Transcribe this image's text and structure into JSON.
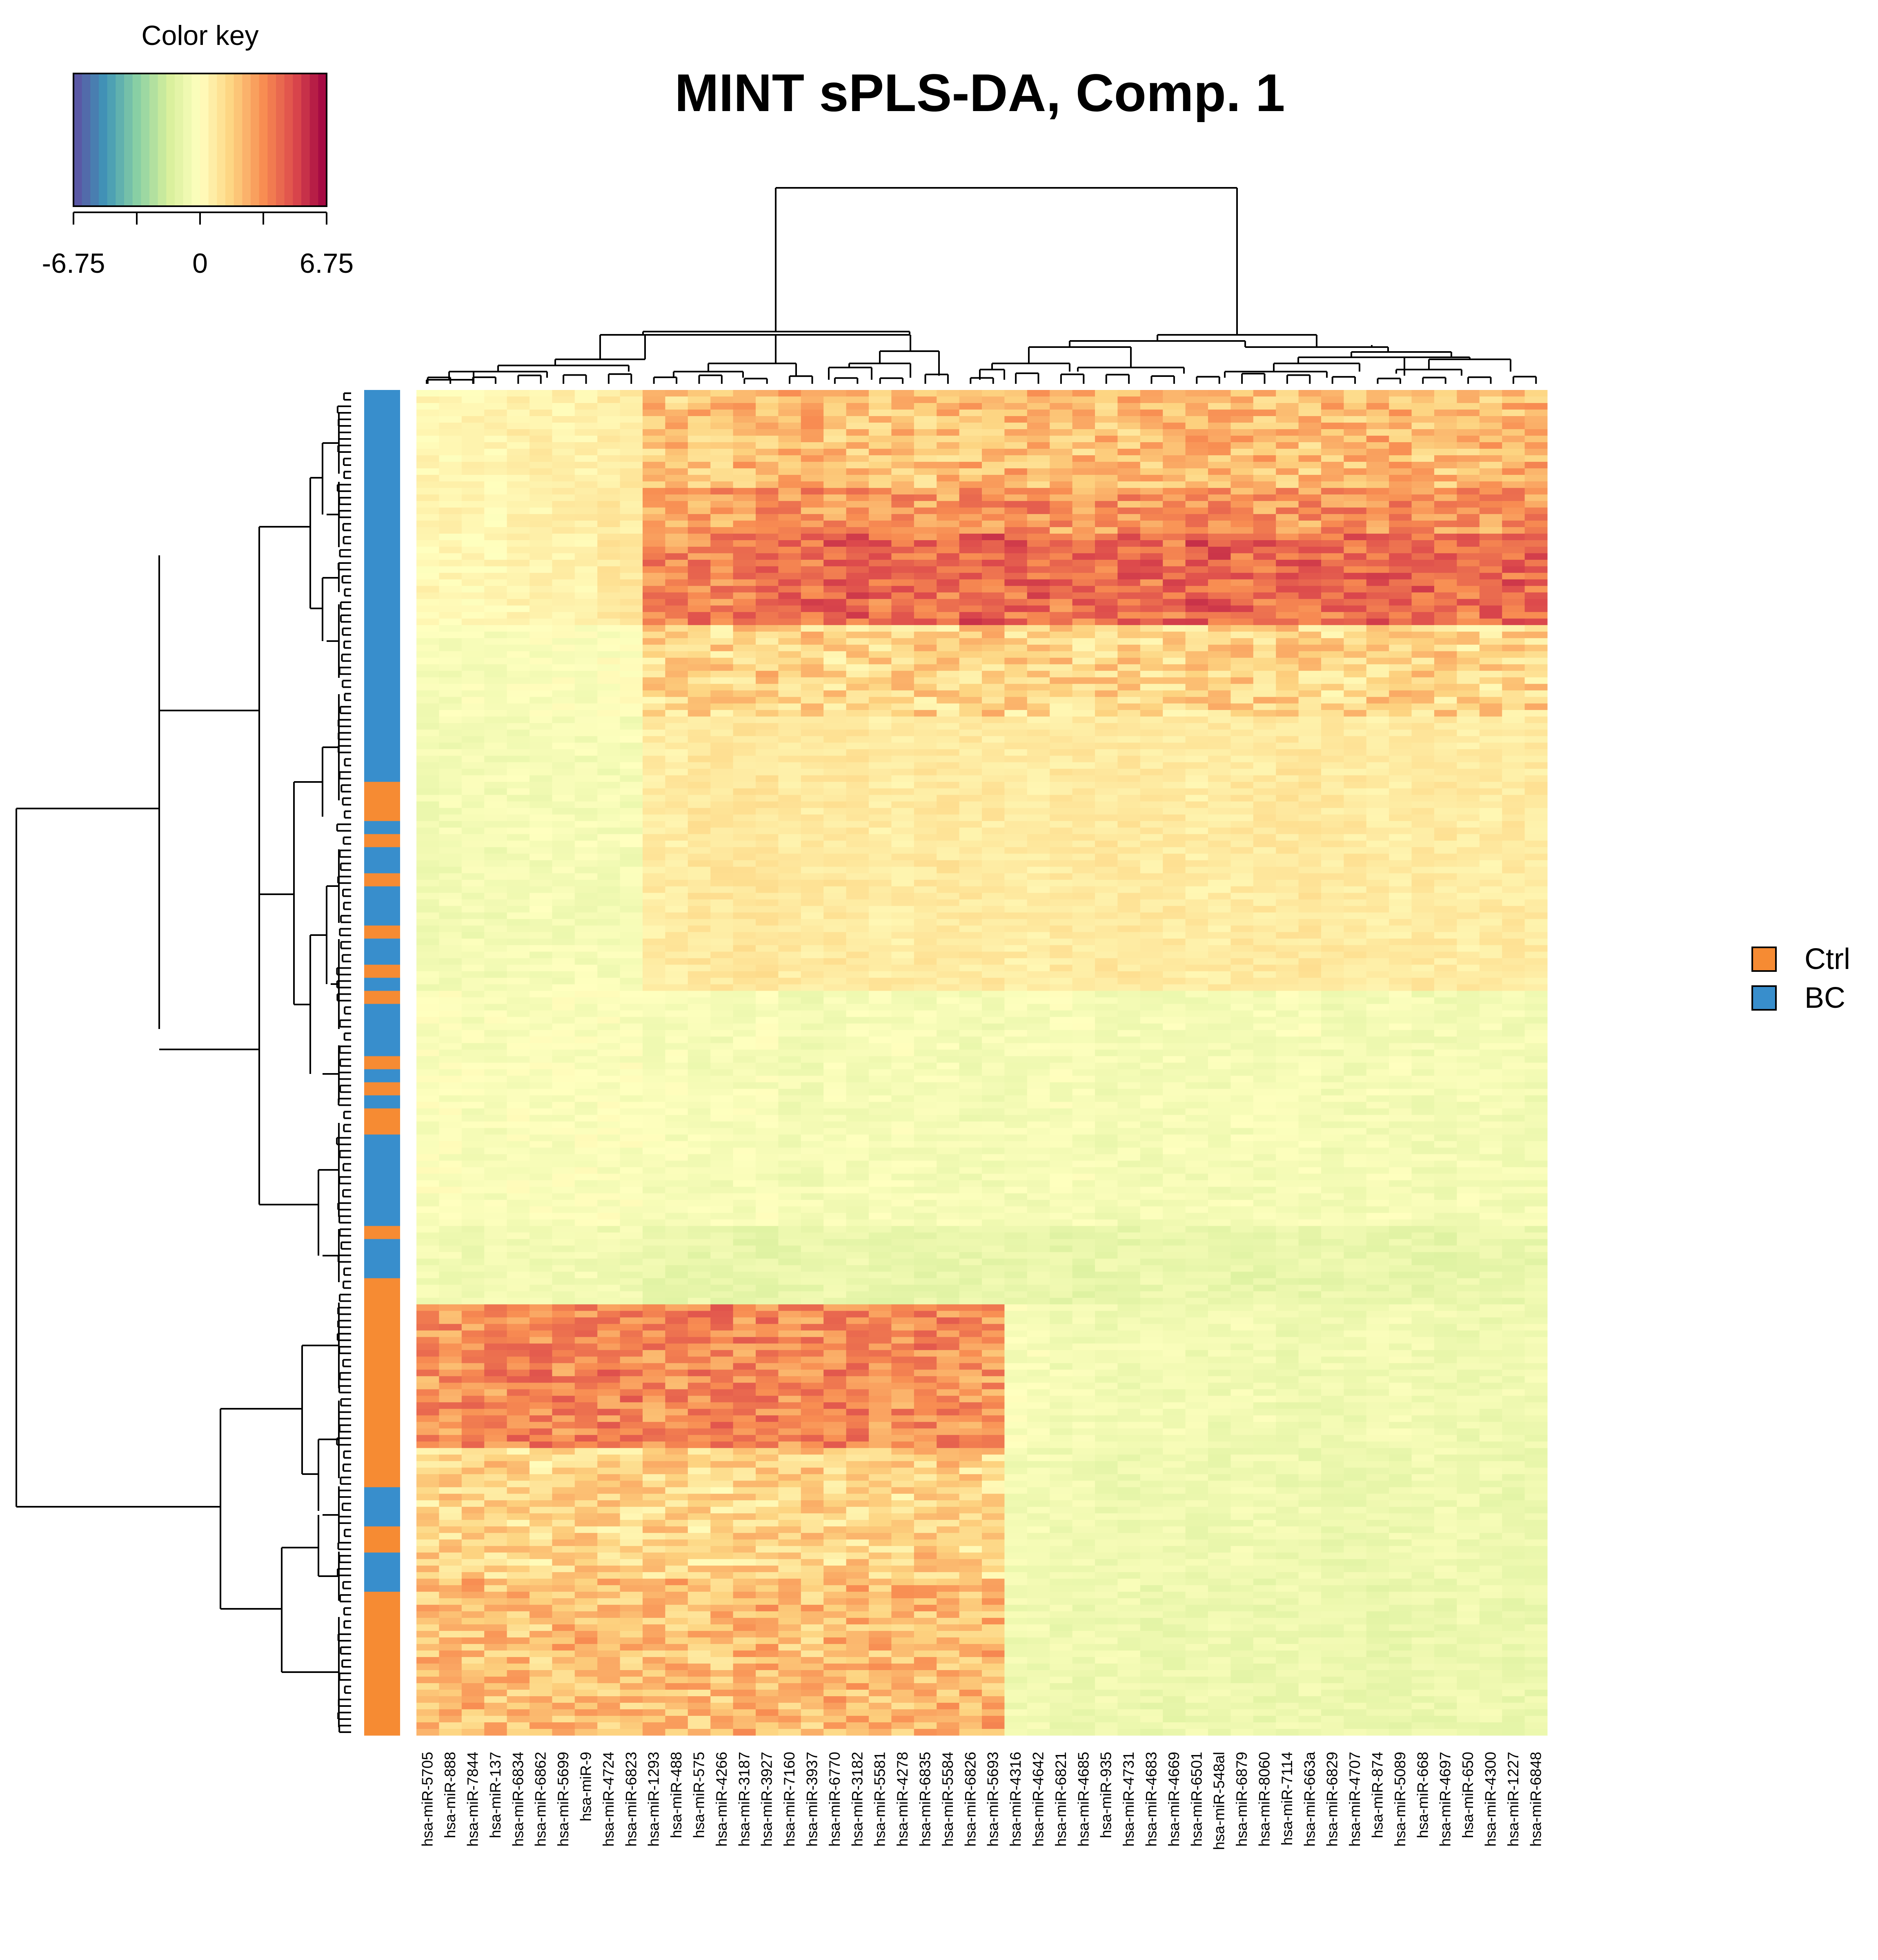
{
  "chart_data": {
    "type": "heatmap",
    "title": "MINT sPLS-DA, Comp. 1",
    "color_key": {
      "title": "Color key",
      "min": -6.75,
      "max": 6.75,
      "tick_labels": [
        "-6.75",
        "0",
        "6.75"
      ],
      "palette": [
        "#5E4FA2",
        "#3F96B7",
        "#88CFA4",
        "#D7EF9B",
        "#FFFFBF",
        "#FDD380",
        "#F88D52",
        "#DC494C",
        "#9E0142"
      ]
    },
    "column_labels": [
      "hsa-miR-5705",
      "hsa-miR-888",
      "hsa-miR-7844",
      "hsa-miR-137",
      "hsa-miR-6834",
      "hsa-miR-6862",
      "hsa-miR-5699",
      "hsa-miR-9",
      "hsa-miR-4724",
      "hsa-miR-6823",
      "hsa-miR-1293",
      "hsa-miR-488",
      "hsa-miR-575",
      "hsa-miR-4266",
      "hsa-miR-3187",
      "hsa-miR-3927",
      "hsa-miR-7160",
      "hsa-miR-3937",
      "hsa-miR-6770",
      "hsa-miR-3182",
      "hsa-miR-5581",
      "hsa-miR-4278",
      "hsa-miR-6835",
      "hsa-miR-5584",
      "hsa-miR-6826",
      "hsa-miR-5693",
      "hsa-miR-4316",
      "hsa-miR-4642",
      "hsa-miR-6821",
      "hsa-miR-4685",
      "hsa-miR-935",
      "hsa-miR-4731",
      "hsa-miR-4683",
      "hsa-miR-4669",
      "hsa-miR-6501",
      "hsa-miR-548al",
      "hsa-miR-6879",
      "hsa-miR-8060",
      "hsa-miR-7114",
      "hsa-miR-663a",
      "hsa-miR-6829",
      "hsa-miR-4707",
      "hsa-miR-874",
      "hsa-miR-5089",
      "hsa-miR-668",
      "hsa-miR-4697",
      "hsa-miR-650",
      "hsa-miR-4300",
      "hsa-miR-1227",
      "hsa-miR-6848"
    ],
    "row_groups": {
      "labels": [
        "BC",
        "BC",
        "BC",
        "BC",
        "BC",
        "BC",
        "BC",
        "BC",
        "BC",
        "BC",
        "BC",
        "BC",
        "BC",
        "BC",
        "BC",
        "BC",
        "BC",
        "BC",
        "BC",
        "BC",
        "BC",
        "BC",
        "BC",
        "BC",
        "BC",
        "BC",
        "BC",
        "BC",
        "BC",
        "BC",
        "BC",
        "BC",
        "BC",
        "BC",
        "BC",
        "BC",
        "BC",
        "BC",
        "BC",
        "BC",
        "BC",
        "BC",
        "BC",
        "BC",
        "BC",
        "BC",
        "BC",
        "BC",
        "BC",
        "BC",
        "BC",
        "BC",
        "BC",
        "BC",
        "BC",
        "BC",
        "BC",
        "BC",
        "BC",
        "BC",
        "Ctrl",
        "Ctrl",
        "Ctrl",
        "Ctrl",
        "Ctrl",
        "Ctrl",
        "BC",
        "BC",
        "Ctrl",
        "Ctrl",
        "BC",
        "BC",
        "BC",
        "BC",
        "Ctrl",
        "Ctrl",
        "BC",
        "BC",
        "BC",
        "BC",
        "BC",
        "BC",
        "Ctrl",
        "Ctrl",
        "BC",
        "BC",
        "BC",
        "BC",
        "Ctrl",
        "Ctrl",
        "BC",
        "BC",
        "Ctrl",
        "Ctrl",
        "BC",
        "BC",
        "BC",
        "BC",
        "BC",
        "BC",
        "BC",
        "BC",
        "Ctrl",
        "Ctrl",
        "BC",
        "BC",
        "Ctrl",
        "Ctrl",
        "BC",
        "BC",
        "Ctrl",
        "Ctrl",
        "Ctrl",
        "Ctrl",
        "BC",
        "BC",
        "BC",
        "BC",
        "BC",
        "BC",
        "BC",
        "BC",
        "BC",
        "BC",
        "BC",
        "BC",
        "BC",
        "BC",
        "Ctrl",
        "Ctrl",
        "BC",
        "BC",
        "BC",
        "BC",
        "BC",
        "BC",
        "Ctrl",
        "Ctrl",
        "Ctrl",
        "Ctrl",
        "Ctrl",
        "Ctrl",
        "Ctrl",
        "Ctrl",
        "Ctrl",
        "Ctrl",
        "Ctrl",
        "Ctrl",
        "Ctrl",
        "Ctrl",
        "Ctrl",
        "Ctrl",
        "Ctrl",
        "Ctrl",
        "Ctrl",
        "Ctrl",
        "Ctrl",
        "Ctrl",
        "Ctrl",
        "Ctrl",
        "Ctrl",
        "Ctrl",
        "Ctrl",
        "Ctrl",
        "Ctrl",
        "Ctrl",
        "Ctrl",
        "Ctrl",
        "BC",
        "BC",
        "BC",
        "BC",
        "BC",
        "BC",
        "Ctrl",
        "Ctrl",
        "Ctrl",
        "Ctrl",
        "BC",
        "BC",
        "BC",
        "BC",
        "BC",
        "BC",
        "Ctrl",
        "Ctrl",
        "Ctrl",
        "Ctrl",
        "Ctrl",
        "Ctrl",
        "Ctrl",
        "Ctrl",
        "Ctrl",
        "Ctrl",
        "Ctrl",
        "Ctrl",
        "Ctrl",
        "Ctrl",
        "Ctrl",
        "Ctrl",
        "Ctrl",
        "Ctrl",
        "Ctrl",
        "Ctrl",
        "Ctrl",
        "Ctrl"
      ],
      "colors": {
        "Ctrl": "#F68B33",
        "BC": "#388ECC"
      }
    },
    "row_blocks": [
      {
        "rows": [
          0,
          15
        ],
        "values": [
          0.3,
          0.4,
          0.6,
          0.5,
          0.7,
          1.9,
          2.0,
          2.3,
          2.2,
          2.0,
          2.1,
          2.0,
          2.2,
          2.3,
          2.0,
          2.1,
          2.2,
          2.4,
          2.2,
          2.0,
          2.1,
          2.3,
          2.0,
          2.2,
          2.4
        ]
      },
      {
        "rows": [
          15,
          22
        ],
        "values": [
          0.4,
          0.3,
          0.5,
          0.6,
          0.8,
          2.6,
          2.9,
          3.1,
          3.2,
          3.0,
          3.3,
          3.0,
          3.2,
          3.4,
          3.0,
          3.1,
          3.2,
          3.3,
          3.0,
          3.1,
          3.4,
          3.2,
          3.1,
          3.0,
          3.3
        ]
      },
      {
        "rows": [
          22,
          36
        ],
        "values": [
          0.3,
          0.3,
          0.4,
          0.5,
          0.9,
          3.4,
          3.7,
          4.0,
          4.2,
          4.3,
          4.1,
          4.0,
          4.4,
          4.2,
          4.0,
          4.3,
          4.1,
          4.5,
          4.2,
          4.3,
          4.1,
          4.4,
          4.2,
          4.0,
          4.3
        ]
      },
      {
        "rows": [
          36,
          50
        ],
        "values": [
          -0.4,
          -0.3,
          -0.2,
          -0.2,
          -0.1,
          1.3,
          1.5,
          1.7,
          1.6,
          1.4,
          1.6,
          1.5,
          1.7,
          1.4,
          1.5,
          1.6,
          1.4,
          1.5,
          1.6,
          1.5,
          1.4,
          1.6,
          1.5,
          1.4,
          1.5
        ]
      },
      {
        "rows": [
          50,
          92
        ],
        "values": [
          -0.5,
          -0.5,
          -0.4,
          -0.4,
          -0.4,
          0.7,
          0.9,
          1.0,
          0.8,
          0.9,
          0.7,
          0.9,
          0.8,
          0.7,
          0.8,
          0.9,
          0.8,
          0.7,
          0.8,
          0.9,
          0.8,
          0.7,
          0.8,
          0.7,
          0.8
        ]
      },
      {
        "rows": [
          92,
          128
        ],
        "values": [
          -0.2,
          -0.3,
          -0.2,
          -0.2,
          -0.2,
          -0.3,
          -0.4,
          -0.3,
          -0.5,
          -0.4,
          -0.3,
          -0.4,
          -0.5,
          -0.4,
          -0.3,
          -0.5,
          -0.4,
          -0.5,
          -0.4,
          -0.3,
          -0.5,
          -0.4,
          -0.5,
          -0.4,
          -0.5
        ]
      },
      {
        "rows": [
          128,
          140
        ],
        "values": [
          -0.5,
          -0.6,
          -0.5,
          -0.5,
          -0.6,
          -0.9,
          -0.9,
          -1.0,
          -0.9,
          -0.8,
          -0.9,
          -1.0,
          -0.9,
          -0.9,
          -1.0,
          -0.9,
          -0.8,
          -0.9,
          -1.0,
          -0.9,
          -0.9,
          -0.9,
          -1.0,
          -0.9,
          -0.9
        ]
      },
      {
        "rows": [
          140,
          162
        ],
        "values": [
          3.2,
          3.4,
          3.6,
          3.5,
          3.7,
          3.3,
          3.6,
          3.5,
          3.4,
          3.6,
          3.2,
          3.5,
          3.1,
          -0.3,
          -0.5,
          -0.6,
          -0.5,
          -0.6,
          -0.5,
          -0.7,
          -0.6,
          -0.5,
          -0.6,
          -0.7,
          -0.6
        ]
      },
      {
        "rows": [
          162,
          182
        ],
        "values": [
          1.4,
          1.5,
          1.3,
          1.6,
          1.4,
          1.5,
          1.3,
          1.4,
          1.6,
          1.5,
          1.3,
          1.7,
          1.4,
          -0.5,
          -0.6,
          -0.7,
          -0.6,
          -0.7,
          -0.6,
          -0.7,
          -0.8,
          -0.7,
          -0.6,
          -0.7,
          -0.8
        ]
      },
      {
        "rows": [
          182,
          204
        ],
        "values": [
          2.1,
          2.2,
          2.0,
          2.3,
          2.1,
          2.2,
          2.0,
          2.4,
          2.1,
          2.3,
          2.2,
          2.3,
          2.4,
          -0.6,
          -0.7,
          -0.6,
          -0.8,
          -0.7,
          -0.8,
          -0.7,
          -0.8,
          -0.9,
          -0.8,
          -0.7,
          -0.8
        ]
      }
    ],
    "legend": {
      "entries": [
        {
          "label": "Ctrl",
          "color": "#F68B33"
        },
        {
          "label": "BC",
          "color": "#388ECC"
        }
      ],
      "position": "right"
    }
  }
}
